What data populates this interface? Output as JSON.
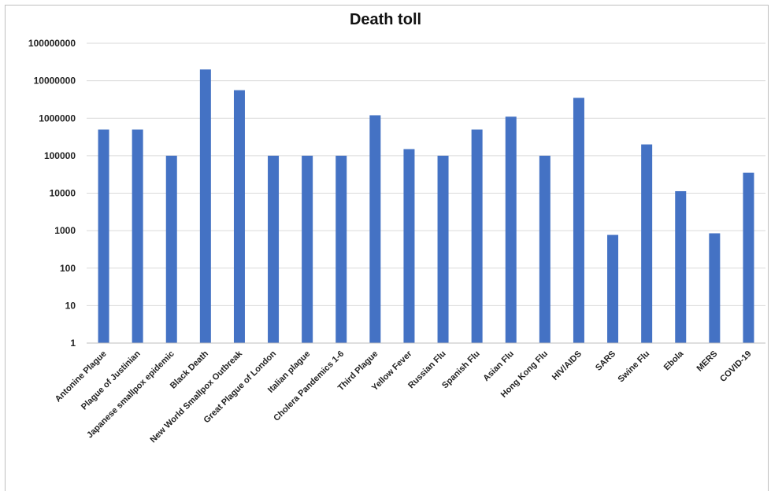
{
  "chart_data": {
    "type": "bar",
    "title": "Death toll",
    "xlabel": "",
    "ylabel": "",
    "y_scale": "log10",
    "ylim": [
      1,
      100000000
    ],
    "y_ticks": [
      "1",
      "10",
      "100",
      "1000",
      "10000",
      "100000",
      "1000000",
      "10000000",
      "100000000"
    ],
    "grid": true,
    "legend": "none",
    "bar_color": "#4472c4",
    "categories": [
      "Antonine Plague",
      "Plague of Justinian",
      "Japanese smallpox epidemic",
      "Black Death",
      "New World Smallpox Outbreak",
      "Great Plague of London",
      "Italian plague",
      "Cholera Pandemics 1-6",
      "Third Plague",
      "Yellow Fever",
      "Russian Flu",
      "Spanish Flu",
      "Asian Flu",
      "Hong Kong Flu",
      "HIV/AIDS",
      "SARS",
      "Swine Flu",
      "Ebola",
      "MERS",
      "COVID-19"
    ],
    "values": [
      500000,
      500000,
      100000,
      20000000,
      5600000,
      100000,
      100000,
      100000,
      1200000,
      150000,
      100000,
      500000,
      1100000,
      100000,
      3500000,
      770,
      200000,
      11300,
      850,
      35000
    ]
  }
}
